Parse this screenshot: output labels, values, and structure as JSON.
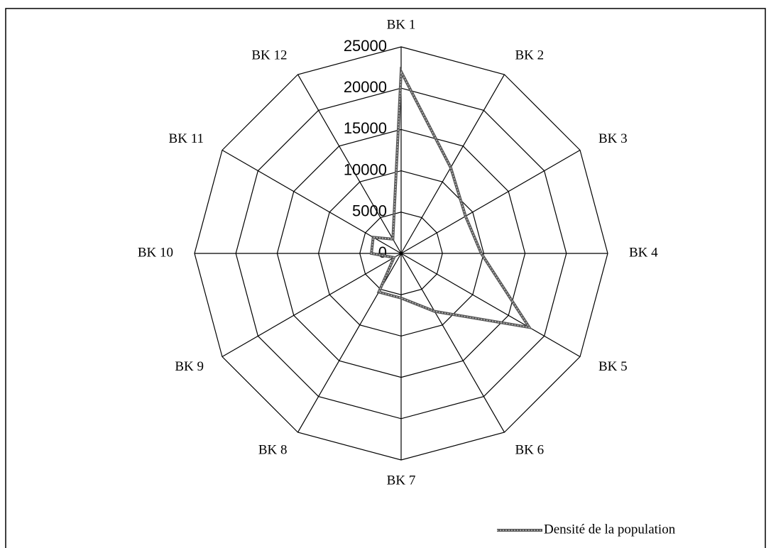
{
  "chart_data": {
    "type": "radar",
    "categories": [
      "BK 1",
      "BK 2",
      "BK 3",
      "BK 4",
      "BK 5",
      "BK 6",
      "BK 7",
      "BK 8",
      "BK 9",
      "BK 10",
      "BK 11",
      "BK 12"
    ],
    "series": [
      {
        "name": "Densité de la population",
        "color": "#555555",
        "values": [
          22000,
          12000,
          9000,
          9700,
          17900,
          8100,
          5400,
          5400,
          1000,
          3600,
          3900,
          2000
        ]
      }
    ],
    "ylim": [
      0,
      25000
    ],
    "yticks": [
      0,
      5000,
      10000,
      15000,
      20000,
      25000
    ],
    "grid": true,
    "legend": "bottom-right"
  }
}
